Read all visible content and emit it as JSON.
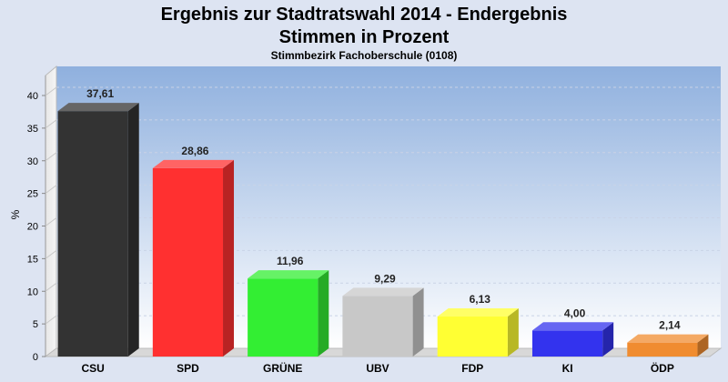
{
  "chart_data": {
    "type": "bar",
    "title": "Ergebnis zur Stadtratswahl 2014 - Endergebnis",
    "title2": "Stimmen in Prozent",
    "subtitle": "Stimmbezirk Fachoberschule (0108)",
    "ylabel": "%",
    "xlabel": "",
    "ylim": [
      0,
      40
    ],
    "yticks": [
      "0",
      "5",
      "10",
      "15",
      "20",
      "25",
      "30",
      "35",
      "40"
    ],
    "categories": [
      "CSU",
      "SPD",
      "GRÜNE",
      "UBV",
      "FDP",
      "KI",
      "ÖDP"
    ],
    "values": [
      37.61,
      28.86,
      11.96,
      9.29,
      6.13,
      4.0,
      2.14
    ],
    "value_labels": [
      "37,61",
      "28,86",
      "11,96",
      "9,29",
      "6,13",
      "4,00",
      "2,14"
    ],
    "colors": [
      "#333333",
      "#ff3030",
      "#33ee33",
      "#c8c8c8",
      "#ffff33",
      "#3333ee",
      "#f08c30"
    ],
    "grid": true,
    "legend": "none"
  }
}
